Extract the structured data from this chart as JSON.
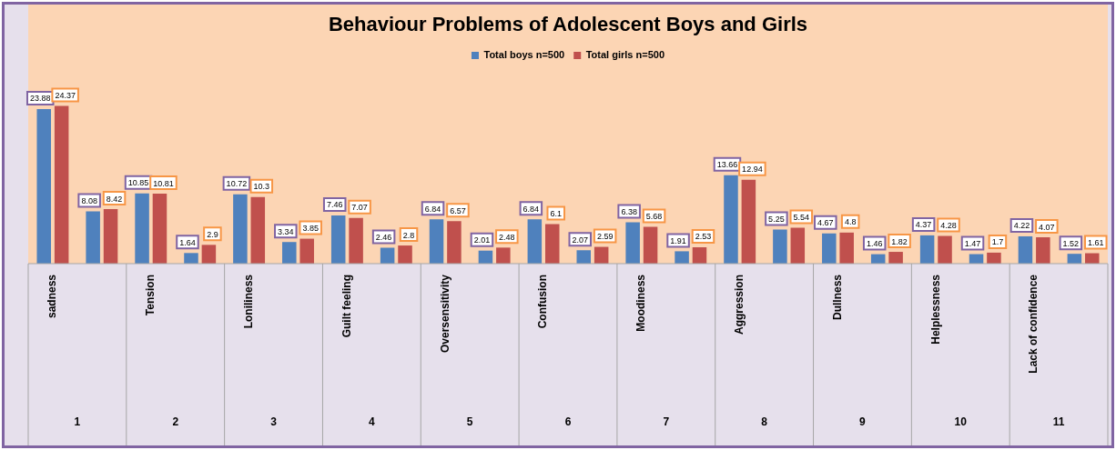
{
  "chart_data": {
    "type": "bar",
    "title": "Behaviour Problems of Adolescent Boys and Girls",
    "categories": [
      "sadness",
      null,
      "Tension",
      null,
      "Loniliness",
      null,
      "Guilt feeling",
      null,
      "Oversensitivity",
      null,
      "Confusion",
      null,
      "Moodiness",
      null,
      "Aggression",
      null,
      "Dullness",
      null,
      "Helplessness",
      null,
      "Lack of confidence",
      null
    ],
    "series": [
      {
        "name": "Total boys n=500",
        "color": "#4f81bd",
        "values": [
          23.88,
          8.08,
          10.85,
          1.64,
          10.72,
          3.34,
          7.46,
          2.46,
          6.84,
          2.01,
          6.84,
          2.07,
          6.38,
          1.91,
          13.66,
          5.25,
          4.67,
          1.46,
          4.37,
          1.47,
          4.22,
          1.52
        ]
      },
      {
        "name": "Total girls n=500",
        "color": "#c0504d",
        "values": [
          24.37,
          8.42,
          10.81,
          2.9,
          10.3,
          3.85,
          7.07,
          2.8,
          6.57,
          2.48,
          6.1,
          2.59,
          5.68,
          2.53,
          12.94,
          5.54,
          4.8,
          1.82,
          4.28,
          1.7,
          4.07,
          1.61
        ]
      }
    ],
    "annotations": [
      "1",
      "2",
      "3",
      "4",
      "5",
      "6",
      "7",
      "8",
      "9",
      "10",
      "11"
    ],
    "tick_labels": "x",
    "data_labels": true,
    "legend": "top",
    "grid": false
  }
}
